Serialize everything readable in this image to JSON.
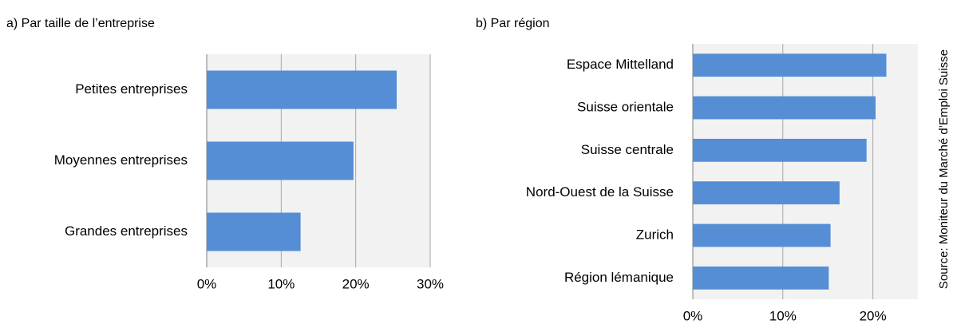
{
  "chart_data": [
    {
      "type": "hbar",
      "title": "a) Par taille de l’entreprise",
      "categories": [
        "Petites entreprises",
        "Moyennes entreprises",
        "Grandes entreprises"
      ],
      "values": [
        25.5,
        19.7,
        12.6
      ],
      "color": "#558ed5",
      "xlim": [
        0,
        30
      ],
      "xticks": [
        {
          "value": 0,
          "label": "0%"
        },
        {
          "value": 10,
          "label": "10%"
        },
        {
          "value": 20,
          "label": "20%"
        },
        {
          "value": 30,
          "label": "30%"
        }
      ],
      "grid": true
    },
    {
      "type": "hbar",
      "title": "b) Par région",
      "categories": [
        "Espace Mittelland",
        "Suisse orientale",
        "Suisse centrale",
        "Nord-Ouest de la Suisse",
        "Zurich",
        "Région lémanique"
      ],
      "values": [
        21.5,
        20.3,
        19.3,
        16.3,
        15.3,
        15.1
      ],
      "color": "#558ed5",
      "xlim": [
        0,
        25
      ],
      "xticks": [
        {
          "value": 0,
          "label": "0%"
        },
        {
          "value": 10,
          "label": "10%"
        },
        {
          "value": 20,
          "label": "20%"
        }
      ],
      "grid": true,
      "source": "Source: Moniteur du Marché d’Emploi Suisse"
    }
  ]
}
